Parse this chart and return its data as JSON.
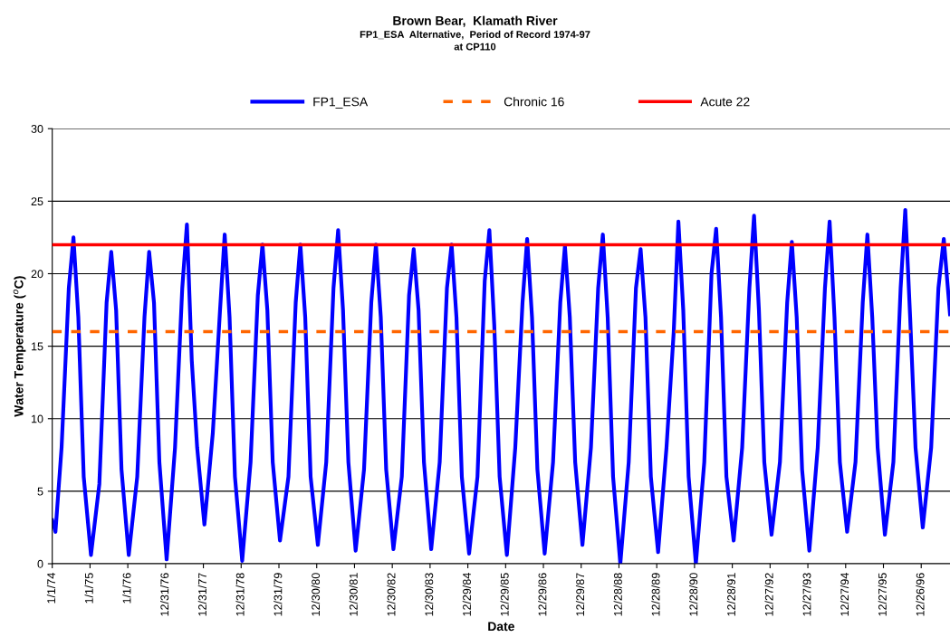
{
  "chart_data": {
    "type": "line",
    "title": "Brown Bear,  Klamath River",
    "subtitle": "FP1_ESA  Alternative,  Period of Record 1974-97\nat CP110",
    "xlabel": "Date",
    "ylabel": "Water Temperature ($^{o}$C)",
    "x": [
      "1974-01-01",
      "1974-02-01",
      "1974-04-01",
      "1974-06-10",
      "1974-07-25",
      "1974-09-10",
      "1974-11-01",
      "1975-01-10",
      "1975-04-01",
      "1975-06-10",
      "1975-07-25",
      "1975-09-10",
      "1975-11-01",
      "1976-01-10",
      "1976-04-01",
      "1976-06-10",
      "1976-07-25",
      "1976-09-10",
      "1976-11-01",
      "1977-01-10",
      "1977-04-01",
      "1977-06-10",
      "1977-07-25",
      "1977-09-10",
      "1977-11-01",
      "1978-01-10",
      "1978-04-01",
      "1978-06-10",
      "1978-07-25",
      "1978-09-10",
      "1978-11-01",
      "1979-01-10",
      "1979-04-01",
      "1979-06-10",
      "1979-07-25",
      "1979-09-10",
      "1979-11-01",
      "1980-01-10",
      "1980-04-01",
      "1980-06-10",
      "1980-07-25",
      "1980-09-10",
      "1980-11-01",
      "1981-01-10",
      "1981-04-01",
      "1981-06-10",
      "1981-07-25",
      "1981-09-10",
      "1981-11-01",
      "1982-01-10",
      "1982-04-01",
      "1982-06-10",
      "1982-07-25",
      "1982-09-10",
      "1982-11-01",
      "1983-01-10",
      "1983-04-01",
      "1983-06-10",
      "1983-07-25",
      "1983-09-10",
      "1983-11-01",
      "1984-01-10",
      "1984-04-01",
      "1984-06-10",
      "1984-07-25",
      "1984-09-10",
      "1984-11-01",
      "1985-01-10",
      "1985-04-01",
      "1985-06-10",
      "1985-07-25",
      "1985-09-10",
      "1985-11-01",
      "1986-01-10",
      "1986-04-01",
      "1986-06-10",
      "1986-07-25",
      "1986-09-10",
      "1986-11-01",
      "1987-01-10",
      "1987-04-01",
      "1987-06-10",
      "1987-07-25",
      "1987-09-10",
      "1987-11-01",
      "1988-01-10",
      "1988-04-01",
      "1988-06-10",
      "1988-07-25",
      "1988-09-10",
      "1988-11-01",
      "1989-01-10",
      "1989-04-01",
      "1989-06-10",
      "1989-07-25",
      "1989-09-10",
      "1989-11-01",
      "1990-01-10",
      "1990-04-01",
      "1990-06-10",
      "1990-07-25",
      "1990-09-10",
      "1990-11-01",
      "1991-01-10",
      "1991-04-01",
      "1991-06-10",
      "1991-07-25",
      "1991-09-10",
      "1991-11-01",
      "1992-01-10",
      "1992-04-01",
      "1992-06-10",
      "1992-07-25",
      "1992-09-10",
      "1992-11-01",
      "1993-01-10",
      "1993-04-01",
      "1993-06-10",
      "1993-07-25",
      "1993-09-10",
      "1993-11-01",
      "1994-01-10",
      "1994-04-01",
      "1994-06-10",
      "1994-07-25",
      "1994-09-10",
      "1994-11-01",
      "1995-01-10",
      "1995-04-01",
      "1995-06-10",
      "1995-07-25",
      "1995-09-10",
      "1995-11-01",
      "1996-01-10",
      "1996-04-01",
      "1996-06-10",
      "1996-07-25",
      "1996-09-10",
      "1996-11-01",
      "1997-01-10",
      "1997-04-01",
      "1997-06-10",
      "1997-08-01",
      "1997-09-30"
    ],
    "series": [
      {
        "name": "FP1_ESA",
        "color": "#0000ff",
        "values": [
          3.0,
          2.2,
          8,
          19,
          22.5,
          17,
          6,
          0.6,
          5.5,
          18,
          21.5,
          17.5,
          6.5,
          0.6,
          6,
          17,
          21.5,
          18,
          7,
          0.3,
          8,
          19,
          23.4,
          14,
          8,
          2.7,
          9,
          17.5,
          22.7,
          17,
          6,
          0.2,
          7,
          18.5,
          22.0,
          17.5,
          7,
          1.6,
          6,
          18,
          22.0,
          17,
          6,
          1.3,
          7,
          19,
          23.0,
          17.5,
          7,
          0.9,
          6.5,
          18,
          22.0,
          17,
          6.5,
          1.0,
          6,
          18.5,
          21.7,
          17.5,
          7,
          1.0,
          7,
          19,
          22.0,
          17,
          6,
          0.7,
          6,
          19.5,
          23.0,
          16.5,
          6,
          0.6,
          8,
          18,
          22.4,
          17,
          6.5,
          0.7,
          7,
          18,
          21.9,
          17,
          7,
          1.3,
          8,
          19,
          22.7,
          17,
          6,
          0,
          7,
          19,
          21.7,
          17,
          6,
          0.8,
          8,
          16,
          23.6,
          17.5,
          6,
          0,
          7,
          20,
          23.1,
          17,
          6,
          1.6,
          8,
          19,
          24.0,
          17.5,
          7,
          2.0,
          7,
          18,
          22.2,
          17,
          6.5,
          0.9,
          8,
          19,
          23.6,
          17,
          7,
          2.2,
          7,
          18,
          22.7,
          17,
          8,
          2.0,
          7,
          19,
          24.4,
          17,
          8,
          2.5,
          8,
          19,
          22.4,
          17.2
        ]
      }
    ],
    "ref_lines": [
      {
        "axis": "y",
        "value": 16,
        "label": "Chronic 16",
        "color": "#ff6600",
        "line_style": "dashed"
      },
      {
        "axis": "y",
        "value": 22,
        "label": "Acute 22",
        "color": "#ff0000",
        "line_style": "solid"
      }
    ],
    "xlim": [
      "1974-01-01",
      "1997-09-30"
    ],
    "xticks": [
      {
        "value": "1974-01-01",
        "label": "1/1/74"
      },
      {
        "value": "1975-01-01",
        "label": "1/1/75"
      },
      {
        "value": "1976-01-01",
        "label": "1/1/76"
      },
      {
        "value": "1976-12-31",
        "label": "12/31/76"
      },
      {
        "value": "1977-12-31",
        "label": "12/31/77"
      },
      {
        "value": "1978-12-31",
        "label": "12/31/78"
      },
      {
        "value": "1979-12-31",
        "label": "12/31/79"
      },
      {
        "value": "1980-12-30",
        "label": "12/30/80"
      },
      {
        "value": "1981-12-30",
        "label": "12/30/81"
      },
      {
        "value": "1982-12-30",
        "label": "12/30/82"
      },
      {
        "value": "1983-12-30",
        "label": "12/30/83"
      },
      {
        "value": "1984-12-29",
        "label": "12/29/84"
      },
      {
        "value": "1985-12-29",
        "label": "12/29/85"
      },
      {
        "value": "1986-12-29",
        "label": "12/29/86"
      },
      {
        "value": "1987-12-29",
        "label": "12/29/87"
      },
      {
        "value": "1988-12-28",
        "label": "12/28/88"
      },
      {
        "value": "1989-12-28",
        "label": "12/28/89"
      },
      {
        "value": "1990-12-28",
        "label": "12/28/90"
      },
      {
        "value": "1991-12-28",
        "label": "12/28/91"
      },
      {
        "value": "1992-12-27",
        "label": "12/27/92"
      },
      {
        "value": "1993-12-27",
        "label": "12/27/93"
      },
      {
        "value": "1994-12-27",
        "label": "12/27/94"
      },
      {
        "value": "1995-12-27",
        "label": "12/27/95"
      },
      {
        "value": "1996-12-26",
        "label": "12/26/96"
      }
    ],
    "ylim": [
      0,
      30
    ],
    "yticks": [
      0,
      5,
      10,
      15,
      20,
      25,
      30
    ],
    "grid": "y",
    "legend": "top",
    "marker": "none",
    "line_style": "solid"
  }
}
